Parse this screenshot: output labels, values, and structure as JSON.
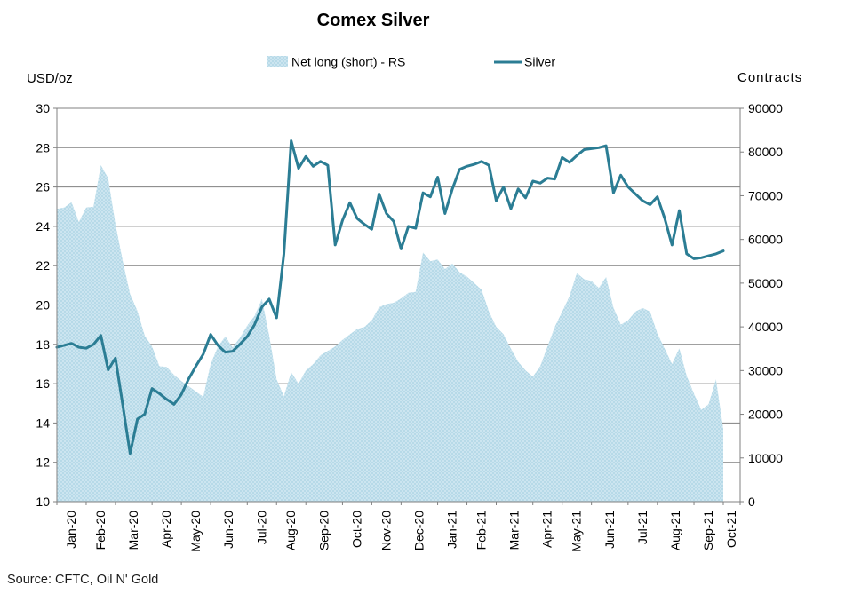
{
  "title": "Comex Silver",
  "legend": {
    "area_label": "Net long (short) - RS",
    "line_label": "Silver"
  },
  "axes": {
    "left_title": "USD/oz",
    "right_title": "Contracts"
  },
  "source": "Source: CFTC, Oil N' Gold",
  "colors": {
    "line": "#2b7d94",
    "area_base": "#b7dae8",
    "area_dot": "#dceef6",
    "grid": "#808080",
    "axis": "#808080",
    "text": "#000000"
  },
  "chart_data": {
    "type": "combo",
    "title": "Comex Silver",
    "x_categories": [
      "Jan-20",
      "Feb-20",
      "Mar-20",
      "Apr-20",
      "May-20",
      "Jun-20",
      "Jul-20",
      "Aug-20",
      "Sep-20",
      "Oct-20",
      "Nov-20",
      "Dec-20",
      "Jan-21",
      "Feb-21",
      "Mar-21",
      "Apr-21",
      "May-21",
      "Jun-21",
      "Jul-21",
      "Aug-21",
      "Sep-21",
      "Oct-21"
    ],
    "weeks_per_month": [
      4,
      4,
      5,
      4,
      4,
      5,
      4,
      4,
      5,
      4,
      4,
      5,
      4,
      4,
      5,
      4,
      4,
      5,
      4,
      5,
      4,
      1
    ],
    "left_axis": {
      "title": "USD/oz",
      "min": 10,
      "max": 30,
      "step": 2
    },
    "right_axis": {
      "title": "Contracts",
      "min": 0,
      "max": 90000,
      "step": 10000
    },
    "grid": "horizontal-only",
    "legend_position": "top",
    "series": [
      {
        "name": "Net long (short) - RS",
        "type": "area",
        "y_axis": "right",
        "values": [
          67000,
          67300,
          68500,
          64000,
          67300,
          67500,
          77000,
          74000,
          63500,
          55000,
          47500,
          43600,
          38000,
          35500,
          31000,
          30800,
          29000,
          27600,
          26400,
          25200,
          24000,
          31500,
          35500,
          37800,
          35300,
          37500,
          40300,
          42500,
          46400,
          38000,
          28000,
          24100,
          29600,
          27000,
          30000,
          31500,
          33500,
          34500,
          35500,
          37000,
          38300,
          39500,
          40000,
          41500,
          44500,
          45200,
          45500,
          46500,
          47800,
          48000,
          57000,
          55000,
          55400,
          53200,
          54500,
          52500,
          51500,
          50000,
          48500,
          43500,
          40000,
          38300,
          35000,
          32000,
          30000,
          28600,
          31000,
          35500,
          40000,
          43500,
          47000,
          52300,
          50900,
          50500,
          48900,
          51400,
          44400,
          40500,
          41500,
          43500,
          44300,
          43500,
          38500,
          35000,
          31500,
          35100,
          28800,
          24700,
          21000,
          22300,
          28000,
          16600
        ]
      },
      {
        "name": "Silver",
        "type": "line",
        "y_axis": "left",
        "values": [
          17.85,
          17.95,
          18.05,
          17.85,
          17.8,
          18.0,
          18.45,
          16.7,
          17.3,
          14.9,
          12.45,
          14.2,
          14.45,
          15.75,
          15.5,
          15.2,
          14.95,
          15.45,
          16.25,
          16.9,
          17.5,
          18.5,
          17.95,
          17.6,
          17.65,
          18.0,
          18.4,
          19.0,
          19.9,
          20.3,
          19.35,
          22.6,
          28.35,
          26.95,
          27.55,
          27.05,
          27.3,
          27.1,
          23.05,
          24.3,
          25.2,
          24.4,
          24.1,
          23.85,
          25.65,
          24.65,
          24.25,
          22.85,
          24.0,
          23.9,
          25.7,
          25.5,
          26.5,
          24.65,
          25.9,
          26.9,
          27.05,
          27.15,
          27.3,
          27.1,
          25.3,
          26.0,
          24.9,
          25.9,
          25.45,
          26.3,
          26.2,
          26.45,
          26.4,
          27.5,
          27.25,
          27.6,
          27.9,
          27.95,
          28.0,
          28.1,
          25.7,
          26.6,
          26.0,
          25.65,
          25.3,
          25.1,
          25.5,
          24.4,
          23.05,
          24.8,
          22.6,
          22.35,
          22.4,
          22.5,
          22.6,
          22.75
        ]
      }
    ]
  }
}
